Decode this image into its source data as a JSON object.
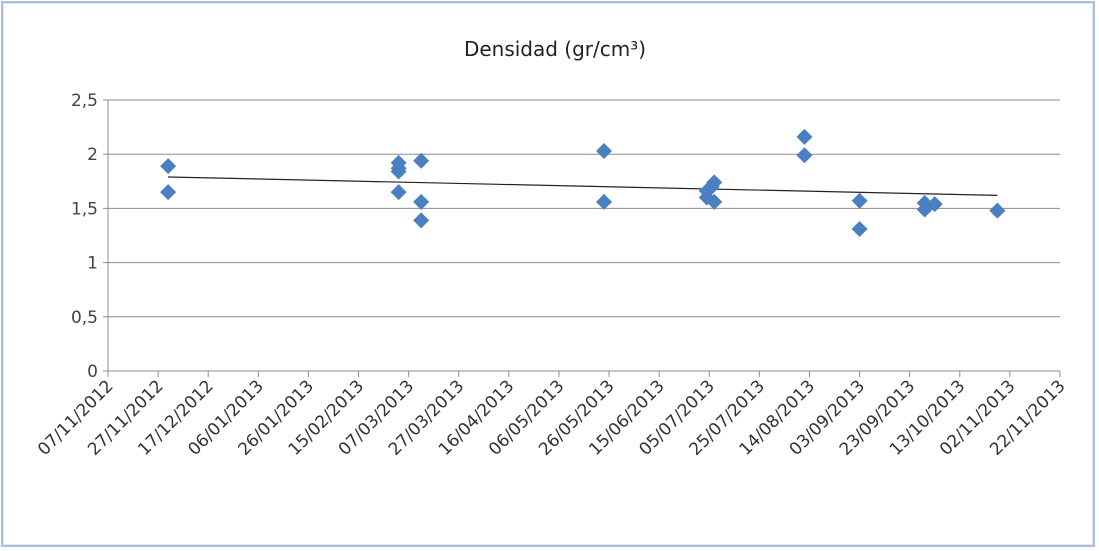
{
  "chart_data": {
    "type": "scatter",
    "title": "Densidad (gr/cm³)",
    "xlabel": "",
    "ylabel": "",
    "x_axis": {
      "type": "date",
      "min": "2012-11-07",
      "max": "2013-11-22",
      "tick_labels": [
        "07/11/2012",
        "27/11/2012",
        "17/12/2012",
        "06/01/2013",
        "26/01/2013",
        "15/02/2013",
        "07/03/2013",
        "27/03/2013",
        "16/04/2013",
        "06/05/2013",
        "26/05/2013",
        "15/06/2013",
        "05/07/2013",
        "25/07/2013",
        "14/08/2013",
        "03/09/2013",
        "23/09/2013",
        "13/10/2013",
        "02/11/2013",
        "22/11/2013"
      ]
    },
    "y_axis": {
      "min": 0,
      "max": 2.5,
      "tick_labels": [
        "0",
        "0,5",
        "1",
        "1,5",
        "2",
        "2,5"
      ],
      "tick_values": [
        0,
        0.5,
        1,
        1.5,
        2,
        2.5
      ]
    },
    "grid": true,
    "legend": "none",
    "marker_color": "#4a7fc1",
    "trendline_color": "#222222",
    "series": [
      {
        "points": [
          {
            "x": "2012-12-01",
            "y": 1.89
          },
          {
            "x": "2012-12-01",
            "y": 1.65
          },
          {
            "x": "2013-03-03",
            "y": 1.92
          },
          {
            "x": "2013-03-03",
            "y": 1.87
          },
          {
            "x": "2013-03-03",
            "y": 1.84
          },
          {
            "x": "2013-03-03",
            "y": 1.65
          },
          {
            "x": "2013-03-12",
            "y": 1.94
          },
          {
            "x": "2013-03-12",
            "y": 1.56
          },
          {
            "x": "2013-03-12",
            "y": 1.39
          },
          {
            "x": "2013-05-24",
            "y": 2.03
          },
          {
            "x": "2013-05-24",
            "y": 1.56
          },
          {
            "x": "2013-07-04",
            "y": 1.6
          },
          {
            "x": "2013-07-04",
            "y": 1.66
          },
          {
            "x": "2013-07-06",
            "y": 1.7
          },
          {
            "x": "2013-07-07",
            "y": 1.74
          },
          {
            "x": "2013-07-07",
            "y": 1.56
          },
          {
            "x": "2013-08-12",
            "y": 2.16
          },
          {
            "x": "2013-08-12",
            "y": 1.99
          },
          {
            "x": "2013-09-03",
            "y": 1.57
          },
          {
            "x": "2013-09-03",
            "y": 1.31
          },
          {
            "x": "2013-09-29",
            "y": 1.55
          },
          {
            "x": "2013-09-29",
            "y": 1.49
          },
          {
            "x": "2013-10-03",
            "y": 1.54
          },
          {
            "x": "2013-10-28",
            "y": 1.48
          }
        ]
      }
    ],
    "trendline": {
      "type": "linear",
      "start": {
        "x": "2012-12-01",
        "y": 1.79
      },
      "end": {
        "x": "2013-10-28",
        "y": 1.62
      }
    }
  }
}
